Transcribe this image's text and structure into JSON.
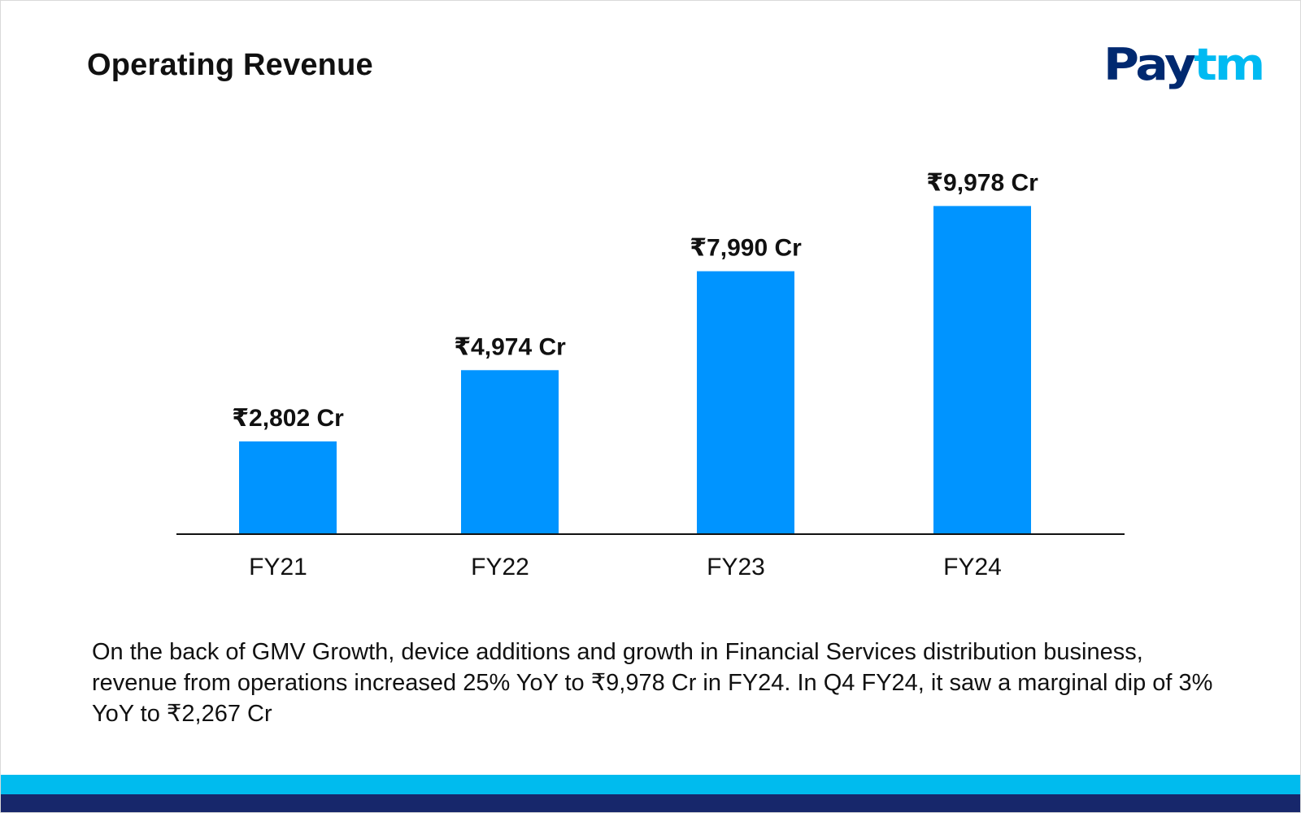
{
  "title": "Operating Revenue",
  "logo": {
    "part1": "Pay",
    "part2": "tm"
  },
  "description": "On the back of GMV Growth, device additions and growth in Financial Services distribution business, revenue from operations increased 25% YoY to ₹9,978 Cr in FY24. In Q4 FY24, it saw a marginal dip of 3% YoY to ₹2,267 Cr",
  "colors": {
    "bar": "#0094ff",
    "brand_dark": "#002970",
    "brand_light": "#00baf2",
    "footer_light": "#00bbee",
    "footer_dark": "#17276b"
  },
  "chart_data": {
    "type": "bar",
    "categories": [
      "FY21",
      "FY22",
      "FY23",
      "FY24"
    ],
    "values": [
      2802,
      4974,
      7990,
      9978
    ],
    "data_labels": [
      "₹2,802 Cr",
      "₹4,974 Cr",
      "₹7,990 Cr",
      "₹9,978 Cr"
    ],
    "title": "",
    "xlabel": "",
    "ylabel": "",
    "ylim": [
      0,
      11000
    ],
    "grid": false,
    "legend": "none"
  }
}
